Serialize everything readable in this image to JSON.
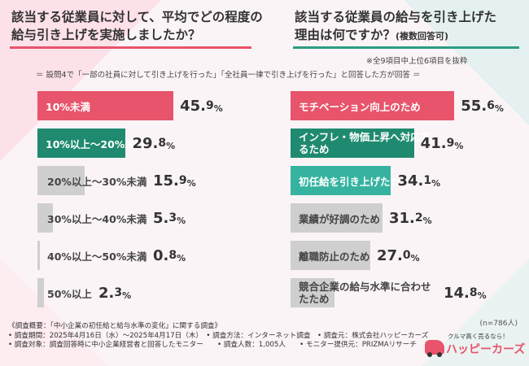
{
  "left_title": [
    "該当する従業員に対して、平均でどの程度の",
    "給与引き上げを実施しましたか？"
  ],
  "right_title": [
    "該当する従業員の給与を引き上げた",
    "理由は何ですか？"
  ],
  "right_title_suffix": "(複数回答可)",
  "note_top_right": "※全9項目中上位6項目を抜粋",
  "note_condition": "＝ 設問4で「一部の社員に対して引き上げを行った」「全社員一律で引き上げを行った」と回答した方が回答 ＝",
  "n_value": "(n=786人)",
  "footer": [
    "《調査概要：「中小企業の初任給と給与水準の変化」に関する調査》",
    "• 調査期間：2025年4月16日（水）～2025年4月17日（木）　• 調査方法：インターネット調査　• 調査元：株式会社ハッピーカーズ",
    "• 調査対象：調査回答時に中小企業経営者と回答したモニター　　• 調査人数：1,005人　　• モニター提供元：PRIZMAリサーチ"
  ],
  "logo": {
    "tagline": "クルマ高く売るなら！",
    "name": "ハッピーカーズ"
  },
  "colors": {
    "pink": "#e8546b",
    "green": "#1f8a6f",
    "teal": "#35b3a0",
    "gray": "#c9c9c9"
  },
  "chart_data": [
    {
      "type": "bar",
      "orientation": "horizontal",
      "unit": "%",
      "categories": [
        "10%未満",
        "10%以上～20%未満",
        "20%以上～30%未満",
        "30%以上～40%未満",
        "40%以上～50%未満",
        "50%以上"
      ],
      "values": [
        45.9,
        29.8,
        15.9,
        5.3,
        0.8,
        2.3
      ],
      "bar_colors": [
        "pink",
        "green",
        "gray",
        "gray",
        "gray",
        "gray"
      ]
    },
    {
      "type": "bar",
      "orientation": "horizontal",
      "unit": "%",
      "categories": [
        "モチベーション向上のため",
        "インフレ・物価上昇へ対応するため",
        "初任給を引き上げたため",
        "業績が好調のため",
        "離職防止のため",
        "競合企業の給与水準に合わせたため"
      ],
      "values": [
        55.6,
        41.9,
        34.1,
        31.2,
        27.0,
        14.8
      ],
      "bar_colors": [
        "pink",
        "green",
        "teal",
        "gray",
        "gray",
        "gray"
      ]
    }
  ]
}
